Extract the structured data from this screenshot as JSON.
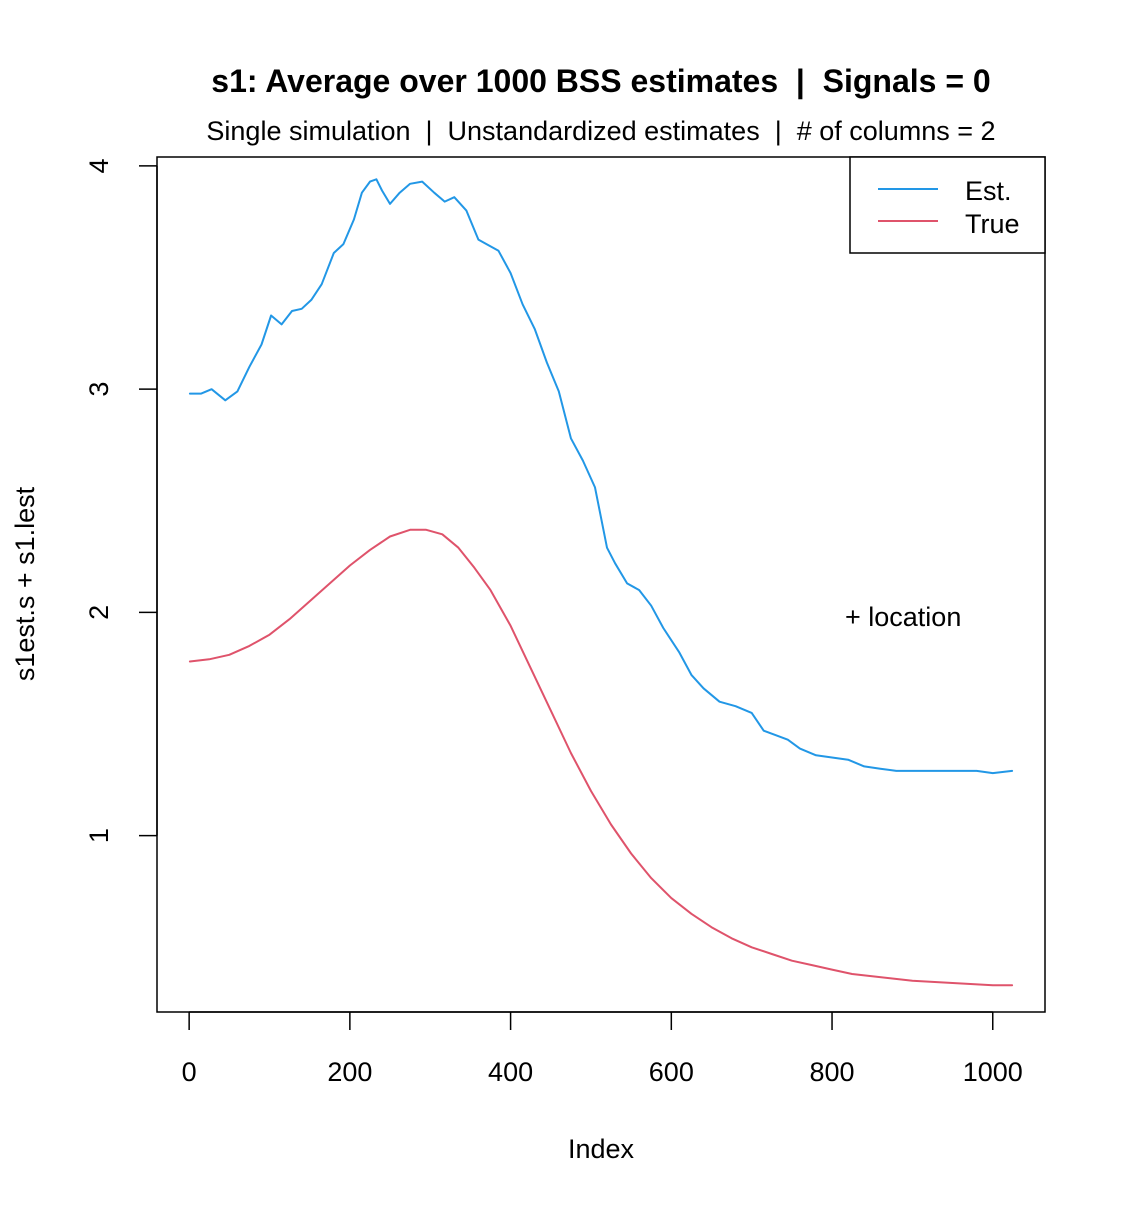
{
  "chart_data": {
    "type": "line",
    "title": "s1: Average over 1000 BSS estimates  |  Signals = 0",
    "subtitle": "Single simulation  |  Unstandardized estimates  |  # of columns = 2",
    "xlabel": "Index",
    "ylabel": "s1est.s + s1.lest",
    "xlim": [
      -40,
      1065
    ],
    "ylim": [
      0.21,
      4.04
    ],
    "xticks": [
      0,
      200,
      400,
      600,
      800,
      1000
    ],
    "yticks": [
      1,
      2,
      3,
      4
    ],
    "grid": false,
    "legend": {
      "position": "top-right",
      "entries": [
        "Est.",
        "True"
      ]
    },
    "annotation": {
      "text": "+ location",
      "x": 820,
      "y": 2.0
    },
    "series": [
      {
        "name": "Est.",
        "color": "#2297E6",
        "x": [
          1,
          15,
          28,
          45,
          60,
          75,
          90,
          102,
          115,
          128,
          140,
          152,
          165,
          180,
          192,
          205,
          215,
          225,
          233,
          240,
          250,
          262,
          275,
          290,
          305,
          318,
          330,
          345,
          360,
          370,
          385,
          400,
          415,
          430,
          445,
          460,
          475,
          490,
          505,
          520,
          530,
          545,
          560,
          575,
          590,
          610,
          625,
          640,
          660,
          680,
          700,
          715,
          730,
          745,
          760,
          780,
          800,
          820,
          840,
          860,
          880,
          900,
          920,
          940,
          960,
          980,
          1000,
          1024
        ],
        "values": [
          2.98,
          2.98,
          3.0,
          2.95,
          2.99,
          3.1,
          3.2,
          3.33,
          3.29,
          3.35,
          3.36,
          3.4,
          3.47,
          3.61,
          3.65,
          3.76,
          3.88,
          3.93,
          3.94,
          3.89,
          3.83,
          3.88,
          3.92,
          3.93,
          3.88,
          3.84,
          3.86,
          3.8,
          3.67,
          3.65,
          3.62,
          3.52,
          3.38,
          3.27,
          3.12,
          2.99,
          2.78,
          2.68,
          2.56,
          2.29,
          2.22,
          2.13,
          2.1,
          2.03,
          1.93,
          1.82,
          1.72,
          1.66,
          1.6,
          1.58,
          1.55,
          1.47,
          1.45,
          1.43,
          1.39,
          1.36,
          1.35,
          1.34,
          1.31,
          1.3,
          1.29,
          1.29,
          1.29,
          1.29,
          1.29,
          1.29,
          1.28,
          1.29
        ]
      },
      {
        "name": "True",
        "color": "#DF536B",
        "x": [
          1,
          25,
          50,
          75,
          100,
          125,
          150,
          175,
          200,
          225,
          250,
          275,
          295,
          315,
          335,
          355,
          375,
          400,
          425,
          450,
          475,
          500,
          525,
          550,
          575,
          600,
          625,
          650,
          675,
          700,
          725,
          750,
          775,
          800,
          825,
          850,
          875,
          900,
          925,
          950,
          975,
          1000,
          1024
        ],
        "values": [
          1.78,
          1.79,
          1.81,
          1.85,
          1.9,
          1.97,
          2.05,
          2.13,
          2.21,
          2.28,
          2.34,
          2.37,
          2.37,
          2.35,
          2.29,
          2.2,
          2.1,
          1.94,
          1.75,
          1.56,
          1.37,
          1.2,
          1.05,
          0.92,
          0.81,
          0.72,
          0.65,
          0.59,
          0.54,
          0.5,
          0.47,
          0.44,
          0.42,
          0.4,
          0.38,
          0.37,
          0.36,
          0.35,
          0.345,
          0.34,
          0.335,
          0.33,
          0.33
        ]
      }
    ]
  }
}
